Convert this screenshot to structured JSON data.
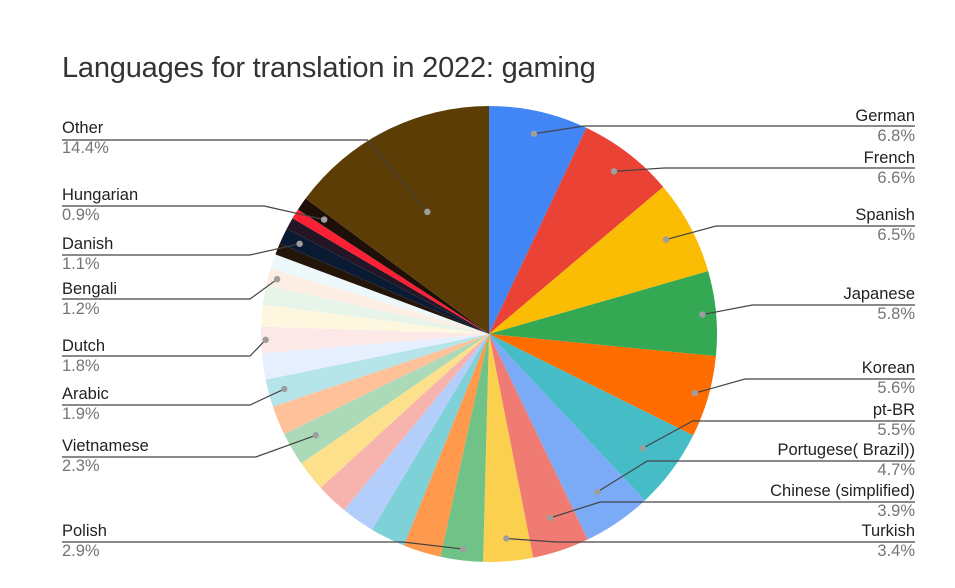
{
  "title": "Languages for translation in 2022: gaming",
  "chart_data": {
    "type": "pie",
    "title": "Languages for translation in 2022: gaming",
    "start_angle_deg": 0,
    "direction": "clockwise",
    "legend_position": "labeled callouts",
    "slices": [
      {
        "label": "German",
        "value": 6.8,
        "color": "#4285f4",
        "labeled": true
      },
      {
        "label": "French",
        "value": 6.6,
        "color": "#ea4335",
        "labeled": true
      },
      {
        "label": "Spanish",
        "value": 6.5,
        "color": "#fbbc04",
        "labeled": true
      },
      {
        "label": "Japanese",
        "value": 5.8,
        "color": "#34a853",
        "labeled": true
      },
      {
        "label": "Korean",
        "value": 5.6,
        "color": "#ff6d01",
        "labeled": true
      },
      {
        "label": "pt-BR",
        "value": 5.5,
        "color": "#46bdc6",
        "labeled": true
      },
      {
        "label": "Portugese( Brazil))",
        "value": 4.7,
        "color": "#7baaf7",
        "labeled": true
      },
      {
        "label": "Chinese (simplified)",
        "value": 3.9,
        "color": "#f07b72",
        "labeled": true
      },
      {
        "label": "Turkish",
        "value": 3.4,
        "color": "#fcd04f",
        "labeled": true
      },
      {
        "label": "Polish",
        "value": 2.9,
        "color": "#71c287",
        "labeled": true
      },
      {
        "label": "",
        "value": 2.6,
        "color": "#ff994d",
        "labeled": false
      },
      {
        "label": "",
        "value": 2.4,
        "color": "#7ed1d7",
        "labeled": false
      },
      {
        "label": "",
        "value": 2.3,
        "color": "#b3cefb",
        "labeled": false
      },
      {
        "label": "",
        "value": 2.2,
        "color": "#f7b4ae",
        "labeled": false
      },
      {
        "label": "",
        "value": 2.1,
        "color": "#fde08b",
        "labeled": false
      },
      {
        "label": "Vietnamese",
        "value": 2.3,
        "color": "#acdab8",
        "labeled": true
      },
      {
        "label": "",
        "value": 2.0,
        "color": "#ffc19a",
        "labeled": false
      },
      {
        "label": "Arabic",
        "value": 1.9,
        "color": "#b5e5e8",
        "labeled": true
      },
      {
        "label": "",
        "value": 1.8,
        "color": "#e6effd",
        "labeled": false
      },
      {
        "label": "Dutch",
        "value": 1.8,
        "color": "#fce8e6",
        "labeled": true
      },
      {
        "label": "",
        "value": 1.5,
        "color": "#fef7e0",
        "labeled": false
      },
      {
        "label": "",
        "value": 1.3,
        "color": "#e6f4ea",
        "labeled": false
      },
      {
        "label": "Bengali",
        "value": 1.2,
        "color": "#fdeee3",
        "labeled": true
      },
      {
        "label": "",
        "value": 1.0,
        "color": "#ecf8fa",
        "labeled": false
      },
      {
        "label": "",
        "value": 0.8,
        "color": "#24150a",
        "labeled": false
      },
      {
        "label": "Danish",
        "value": 1.1,
        "color": "#0b1a33",
        "labeled": true
      },
      {
        "label": "",
        "value": 0.8,
        "color": "#241624",
        "labeled": false
      },
      {
        "label": "",
        "value": 0.7,
        "color": "#fb2033",
        "labeled": false
      },
      {
        "label": "Hungarian",
        "value": 0.9,
        "color": "#1e1008",
        "labeled": true
      },
      {
        "label": "Other",
        "value": 14.4,
        "color": "#5c3d06",
        "labeled": true
      }
    ]
  },
  "labels": {
    "german": {
      "name": "German",
      "pct": "6.8%"
    },
    "french": {
      "name": "French",
      "pct": "6.6%"
    },
    "spanish": {
      "name": "Spanish",
      "pct": "6.5%"
    },
    "japanese": {
      "name": "Japanese",
      "pct": "5.8%"
    },
    "korean": {
      "name": "Korean",
      "pct": "5.6%"
    },
    "ptbr": {
      "name": "pt-BR",
      "pct": "5.5%"
    },
    "portugese": {
      "name": "Portugese( Brazil))",
      "pct": "4.7%"
    },
    "chinese": {
      "name": "Chinese (simplified)",
      "pct": "3.9%"
    },
    "turkish": {
      "name": "Turkish",
      "pct": "3.4%"
    },
    "polish": {
      "name": "Polish",
      "pct": "2.9%"
    },
    "vietnamese": {
      "name": "Vietnamese",
      "pct": "2.3%"
    },
    "arabic": {
      "name": "Arabic",
      "pct": "1.9%"
    },
    "dutch": {
      "name": "Dutch",
      "pct": "1.8%"
    },
    "bengali": {
      "name": "Bengali",
      "pct": "1.2%"
    },
    "danish": {
      "name": "Danish",
      "pct": "1.1%"
    },
    "hungarian": {
      "name": "Hungarian",
      "pct": "0.9%"
    },
    "other": {
      "name": "Other",
      "pct": "14.4%"
    }
  }
}
